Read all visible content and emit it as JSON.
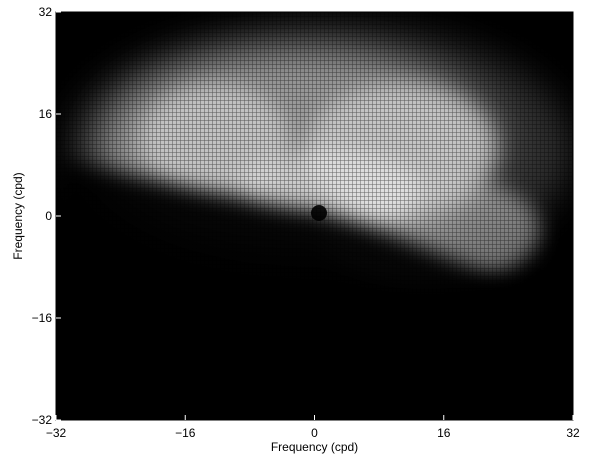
{
  "chart_data": {
    "type": "heatmap",
    "title": "",
    "xlabel": "Frequency (cpd)",
    "ylabel": "Frequency (cpd)",
    "xlim": [
      -32,
      32
    ],
    "ylim": [
      -32,
      32
    ],
    "x_ticks": [
      "-32",
      "-16",
      "0",
      "16",
      "32"
    ],
    "y_ticks": [
      "-32",
      "-16",
      "0",
      "16",
      "32"
    ],
    "colormap": "gray",
    "background_color": "#000000",
    "grid": false,
    "legend": "none",
    "description_values": {
      "bright_region_center_x": 2,
      "bright_region_center_y": 14,
      "dark_spot_x": 1,
      "dark_spot_y": 1
    }
  }
}
